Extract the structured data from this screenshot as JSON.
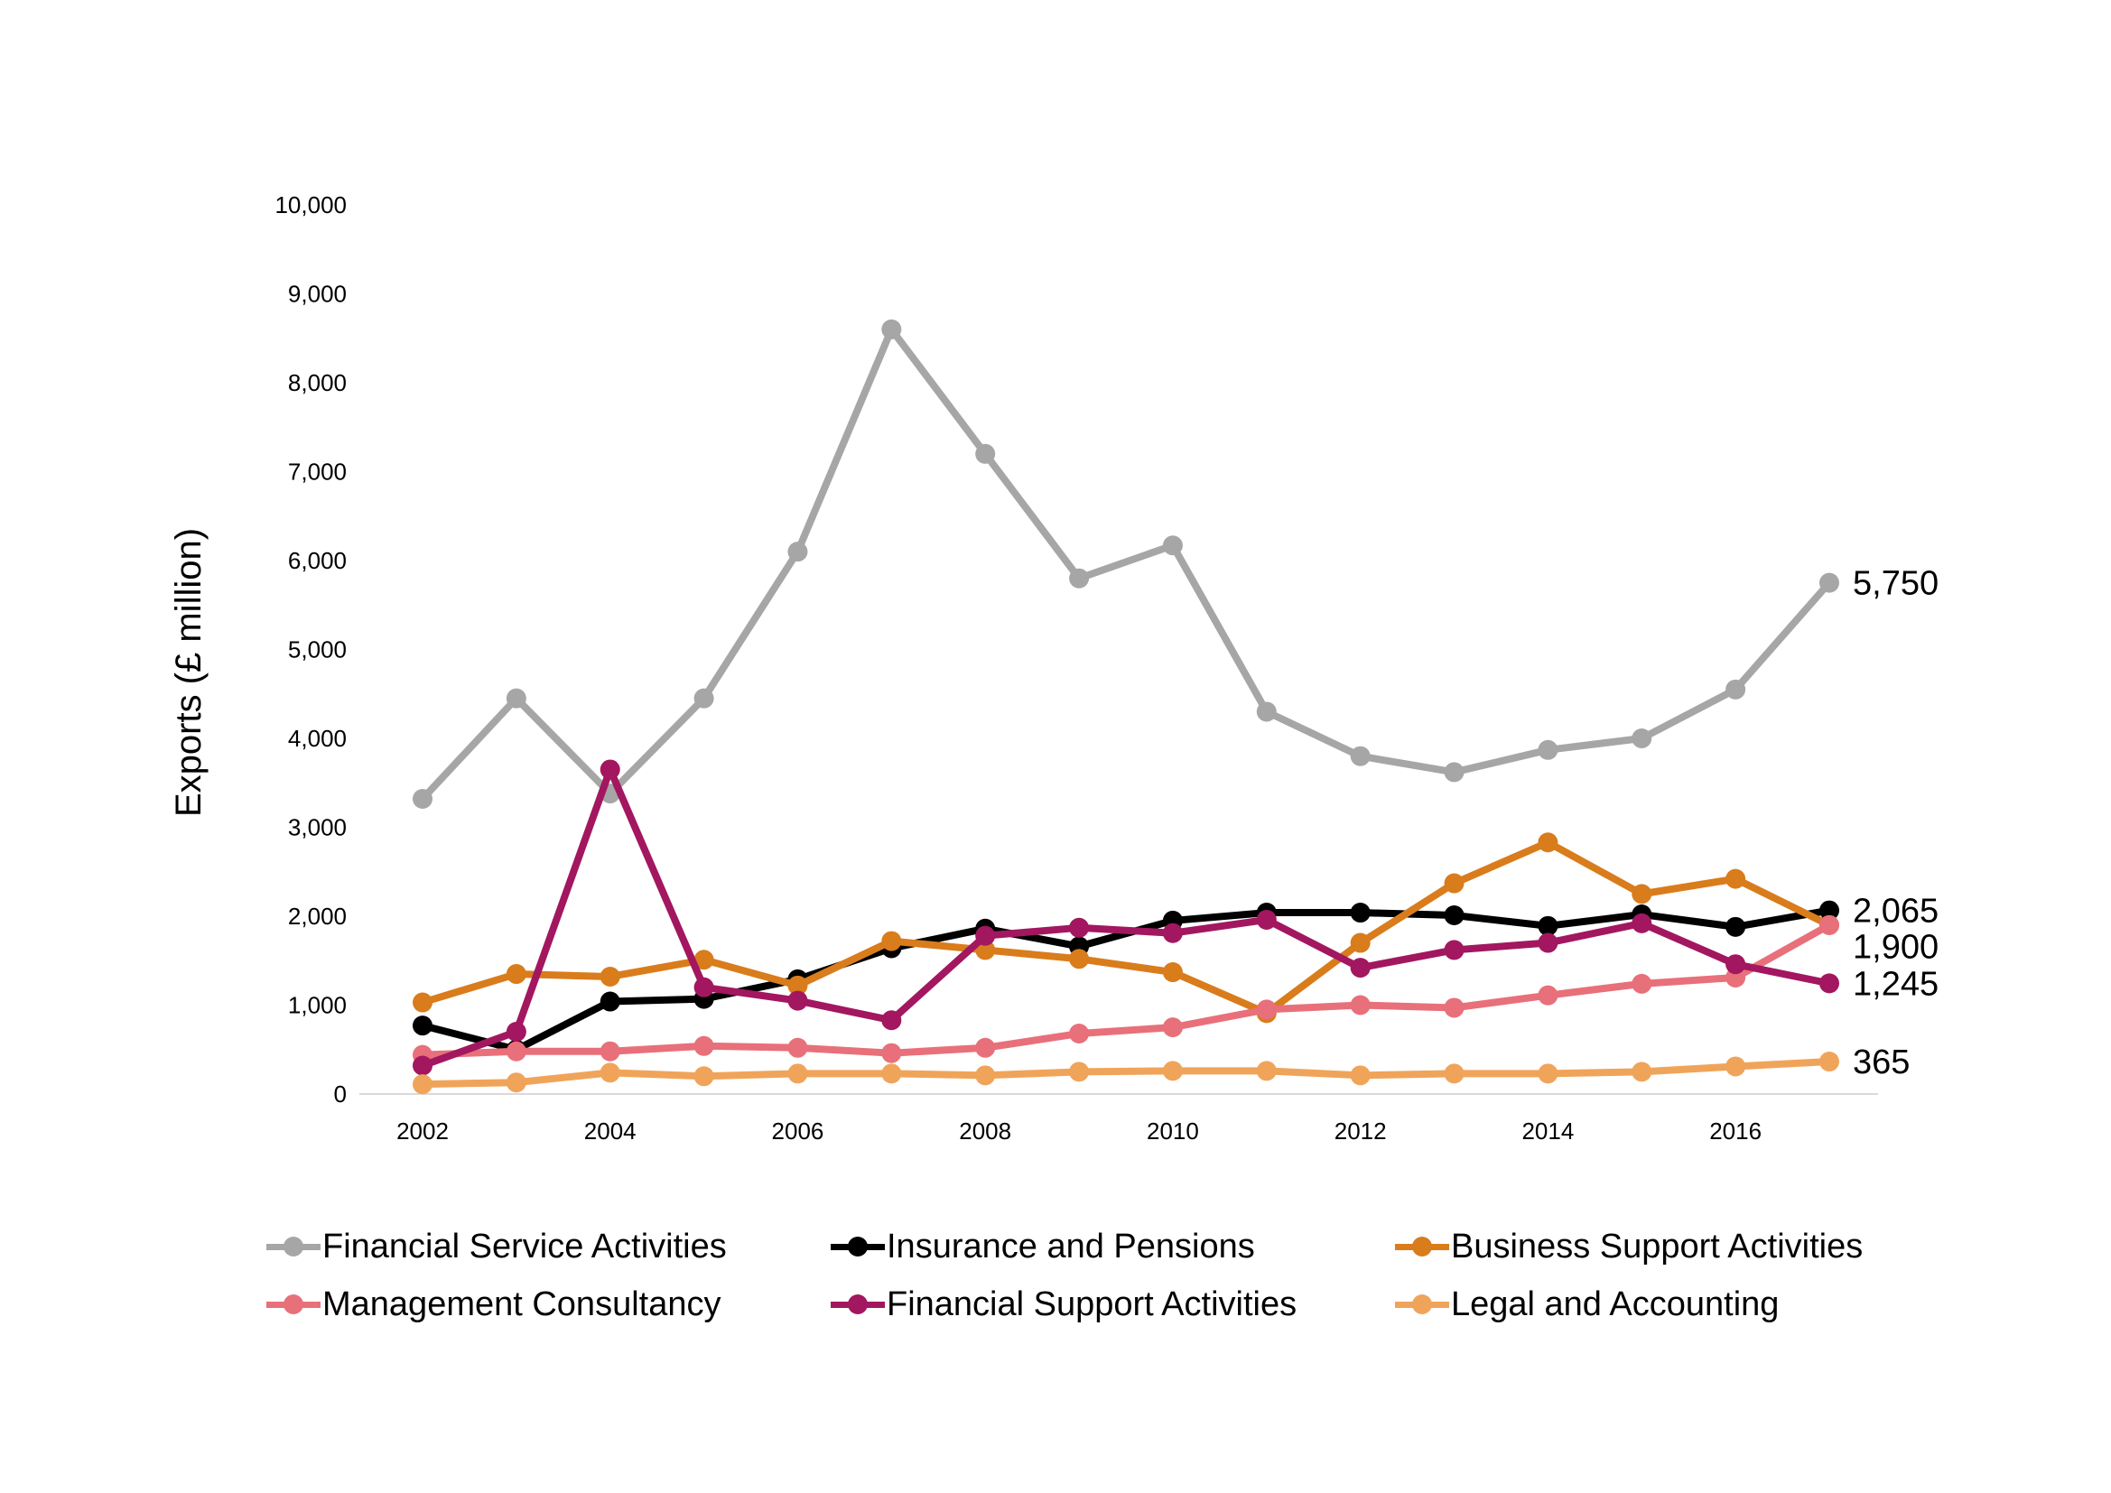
{
  "chart_data": {
    "type": "line",
    "title": "",
    "xlabel": "",
    "ylabel": "Exports (£ million)",
    "ylim": [
      0,
      10000
    ],
    "yticks": [
      0,
      1000,
      2000,
      3000,
      4000,
      5000,
      6000,
      7000,
      8000,
      9000,
      10000
    ],
    "ytick_labels": [
      "0",
      "1,000",
      "2,000",
      "3,000",
      "4,000",
      "5,000",
      "6,000",
      "7,000",
      "8,000",
      "9,000",
      "10,000"
    ],
    "x": [
      2002,
      2003,
      2004,
      2005,
      2006,
      2007,
      2008,
      2009,
      2010,
      2011,
      2012,
      2013,
      2014,
      2015,
      2016,
      2017
    ],
    "xticks": [
      2002,
      2004,
      2006,
      2008,
      2010,
      2012,
      2014,
      2016
    ],
    "xtick_labels": [
      "2002",
      "2004",
      "2006",
      "2008",
      "2010",
      "2012",
      "2014",
      "2016"
    ],
    "grid": false,
    "legend_position": "bottom",
    "series": [
      {
        "name": "Financial Service Activities",
        "color": "#a6a6a6",
        "values": [
          3320,
          4450,
          3380,
          4450,
          6100,
          8600,
          7200,
          5800,
          6170,
          4300,
          3800,
          3620,
          3870,
          4000,
          4550,
          5750
        ],
        "end_label": "5,750"
      },
      {
        "name": "Insurance and Pensions",
        "color": "#000000",
        "values": [
          770,
          500,
          1040,
          1070,
          1290,
          1640,
          1860,
          1660,
          1950,
          2040,
          2040,
          2010,
          1890,
          2020,
          1880,
          2065
        ],
        "end_label": "2,065"
      },
      {
        "name": "Business Support Activities",
        "color": "#d97c1c",
        "values": [
          1030,
          1350,
          1320,
          1510,
          1220,
          1720,
          1620,
          1520,
          1370,
          910,
          1700,
          2370,
          2830,
          2250,
          2420,
          1900
        ],
        "end_label": "1,900"
      },
      {
        "name": "Management Consultancy",
        "color": "#e8707a",
        "values": [
          440,
          480,
          480,
          540,
          520,
          460,
          520,
          680,
          750,
          950,
          1000,
          970,
          1110,
          1240,
          1310,
          1900
        ],
        "end_label": ""
      },
      {
        "name": "Financial Support Activities",
        "color": "#a2175f",
        "values": [
          320,
          700,
          3650,
          1200,
          1050,
          830,
          1780,
          1870,
          1810,
          1960,
          1420,
          1620,
          1700,
          1920,
          1460,
          1245
        ],
        "end_label": "1,245"
      },
      {
        "name": "Legal and Accounting",
        "color": "#f0a45a",
        "values": [
          110,
          130,
          240,
          200,
          230,
          230,
          210,
          250,
          260,
          260,
          210,
          230,
          230,
          250,
          310,
          365
        ],
        "end_label": "365"
      }
    ]
  }
}
